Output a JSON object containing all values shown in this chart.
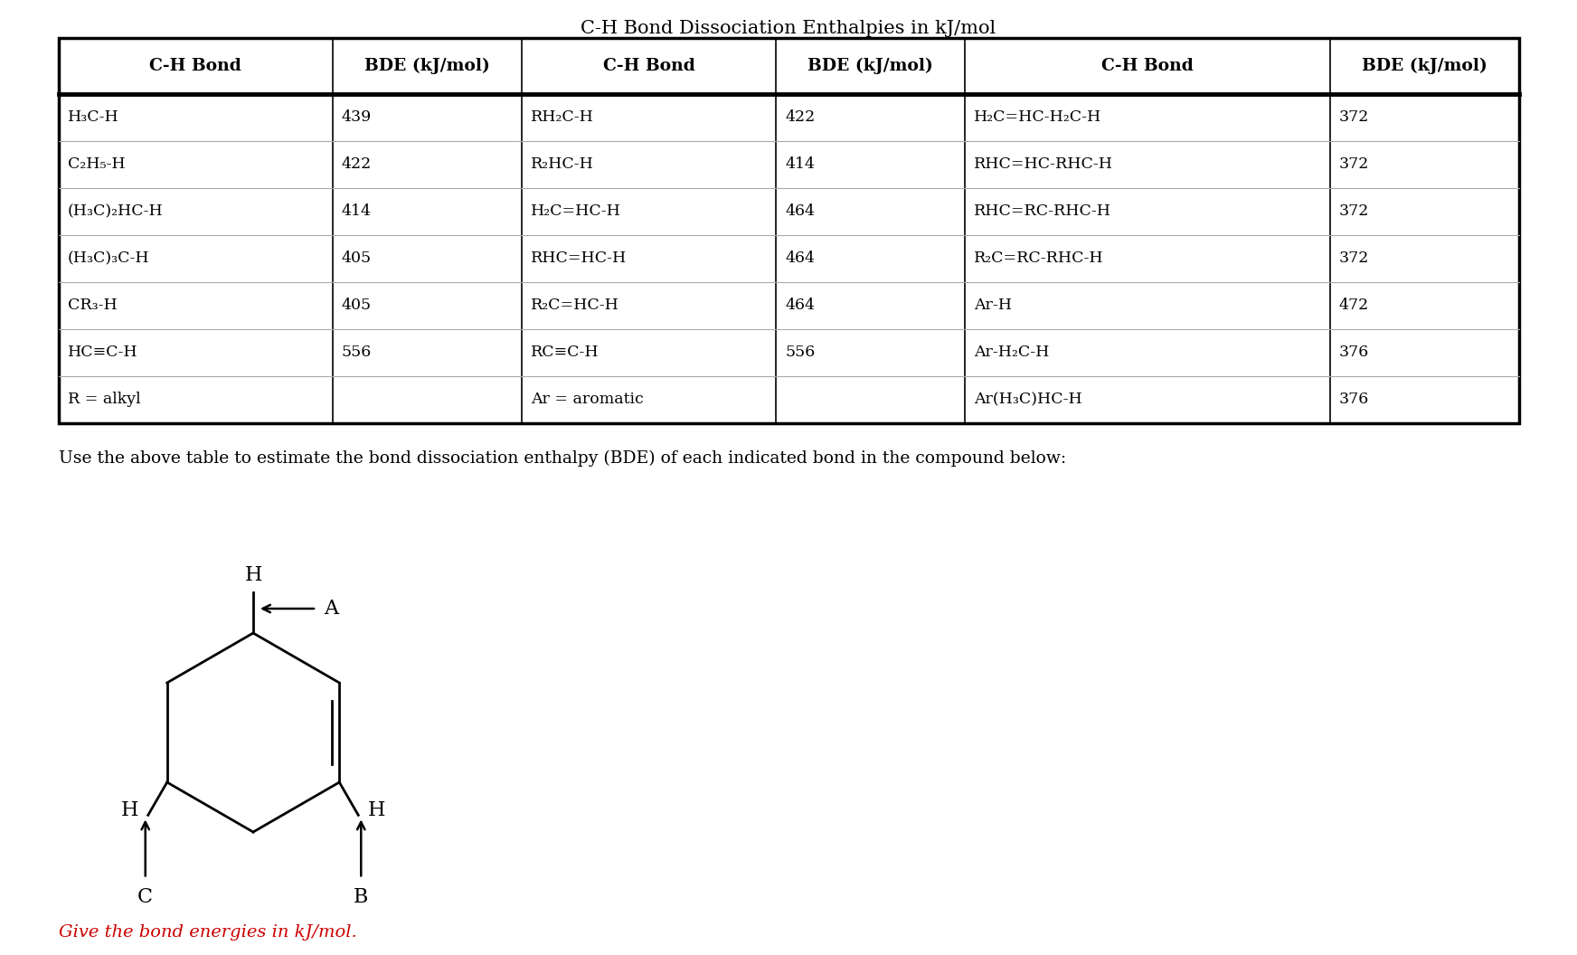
{
  "title": "C-H Bond Dissociation Enthalpies in kJ/mol",
  "col_headers": [
    "C-H Bond",
    "BDE (kJ/mol)",
    "C-H Bond",
    "BDE (kJ/mol)",
    "C-H Bond",
    "BDE (kJ/mol)"
  ],
  "rows": [
    [
      "H₃C-H",
      "439",
      "RH₂C-H",
      "422",
      "H₂C=HC-H₂C-H",
      "372"
    ],
    [
      "C₂H₅-H",
      "422",
      "R₂HC-H",
      "414",
      "RHC=HC-RHC-H",
      "372"
    ],
    [
      "(H₃C)₂HC-H",
      "414",
      "H₂C=HC-H",
      "464",
      "RHC=RC-RHC-H",
      "372"
    ],
    [
      "(H₃C)₃C-H",
      "405",
      "RHC=HC-H",
      "464",
      "R₂C=RC-RHC-H",
      "372"
    ],
    [
      "CR₃-H",
      "405",
      "R₂C=HC-H",
      "464",
      "Ar-H",
      "472"
    ],
    [
      "HC≡C-H",
      "556",
      "RC≡C-H",
      "556",
      "Ar-H₂C-H",
      "376"
    ],
    [
      "R = alkyl",
      "",
      "Ar = aromatic",
      "",
      "Ar(H₃C)HC-H",
      "376"
    ]
  ],
  "instruction_text": "Use the above table to estimate the bond dissociation enthalpy (BDE) of each indicated bond in the compound below:",
  "footer_text": "Give the bond energies in kJ/mol.",
  "footer_color": "#cc0000",
  "bg_color": "#ffffff",
  "text_color": "#000000"
}
